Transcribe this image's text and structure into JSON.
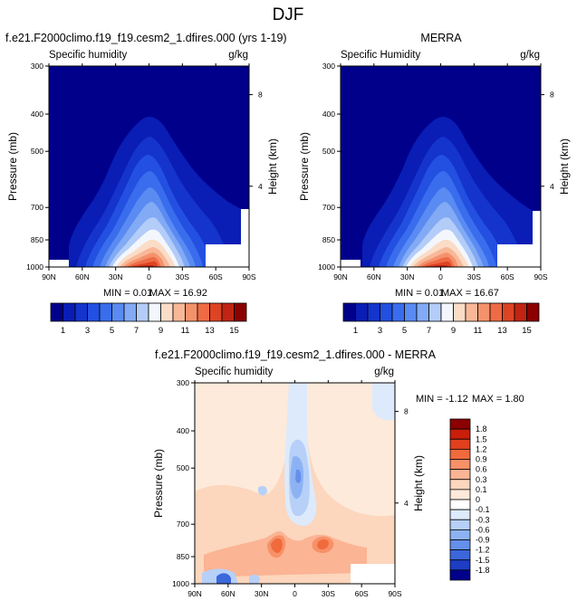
{
  "figure": {
    "title": "DJF"
  },
  "chart_data": [
    {
      "type": "heatmap",
      "id": "model",
      "title": "f.e21.F2000climo.f19_f19.cesm2_1.dfires.000 (yrs 1-19)",
      "subtitle_left": "Specific humidity",
      "units": "g/kg",
      "xlabel": "",
      "ylabel": "Pressure (mb)",
      "y2label": "Height (km)",
      "x_ticks": [
        "90N",
        "60N",
        "30N",
        "0",
        "30S",
        "60S",
        "90S"
      ],
      "y_ticks": [
        300,
        400,
        500,
        700,
        850,
        1000
      ],
      "y2_ticks": [
        8,
        4
      ],
      "xlim": [
        90,
        -90
      ],
      "ylim": [
        1000,
        300
      ],
      "min_label": "MIN =  0.01",
      "max_label": "MAX = 16.92",
      "min": 0.01,
      "max": 16.92,
      "colorbar_levels": [
        1,
        3,
        5,
        7,
        9,
        11,
        13,
        15
      ]
    },
    {
      "type": "heatmap",
      "id": "merra",
      "title": "MERRA",
      "subtitle_left": "Specific Humidity",
      "units": "g/kg",
      "xlabel": "",
      "ylabel": "Pressure (mb)",
      "y2label": "Height (km)",
      "x_ticks": [
        "90N",
        "60N",
        "30N",
        "0",
        "30S",
        "60S",
        "90S"
      ],
      "y_ticks": [
        300,
        400,
        500,
        700,
        850,
        1000
      ],
      "y2_ticks": [
        8,
        4
      ],
      "xlim": [
        90,
        -90
      ],
      "ylim": [
        1000,
        300
      ],
      "min_label": "MIN =  0.01",
      "max_label": "MAX = 16.67",
      "min": 0.01,
      "max": 16.67,
      "colorbar_levels": [
        1,
        3,
        5,
        7,
        9,
        11,
        13,
        15
      ]
    },
    {
      "type": "heatmap",
      "id": "diff",
      "title": "f.e21.F2000climo.f19_f19.cesm2_1.dfires.000 - MERRA",
      "subtitle_left": "Specific humidity",
      "units": "g/kg",
      "xlabel": "",
      "ylabel": "Pressure (mb)",
      "y2label": "Height (km)",
      "x_ticks": [
        "90N",
        "60N",
        "30N",
        "0",
        "30S",
        "60S",
        "90S"
      ],
      "y_ticks": [
        300,
        400,
        500,
        700,
        850,
        1000
      ],
      "y2_ticks": [
        8,
        4
      ],
      "xlim": [
        90,
        -90
      ],
      "ylim": [
        1000,
        300
      ],
      "min_label": "MIN = -1.12",
      "max_label": "MAX =  1.80",
      "min": -1.12,
      "max": 1.8,
      "colorbar_levels": [
        "1.8",
        "1.5",
        "1.2",
        "0.9",
        "0.6",
        "0.3",
        "0.1",
        "0",
        "-0.1",
        "-0.3",
        "-0.6",
        "-0.9",
        "-1.2",
        "-1.5",
        "-1.8"
      ]
    }
  ],
  "colors": {
    "abs_scale": [
      "#00008b",
      "#0a1db5",
      "#1434cc",
      "#2350e0",
      "#3a6ded",
      "#5a8bf2",
      "#82aaf5",
      "#b3cdf8",
      "#f3f7fd",
      "#fbdcc6",
      "#f8b898",
      "#f4926c",
      "#ee6b46",
      "#dd4424",
      "#c02413",
      "#8b0000"
    ],
    "diff_scale": [
      "#8b0000",
      "#c81e0a",
      "#e0401e",
      "#f06a3c",
      "#f89068",
      "#fbb494",
      "#fcd6bd",
      "#fdeadb",
      "#ffffff",
      "#dceafc",
      "#b6d0f8",
      "#8db2f3",
      "#648fea",
      "#3b67db",
      "#1c3dc4",
      "#00008b"
    ]
  }
}
